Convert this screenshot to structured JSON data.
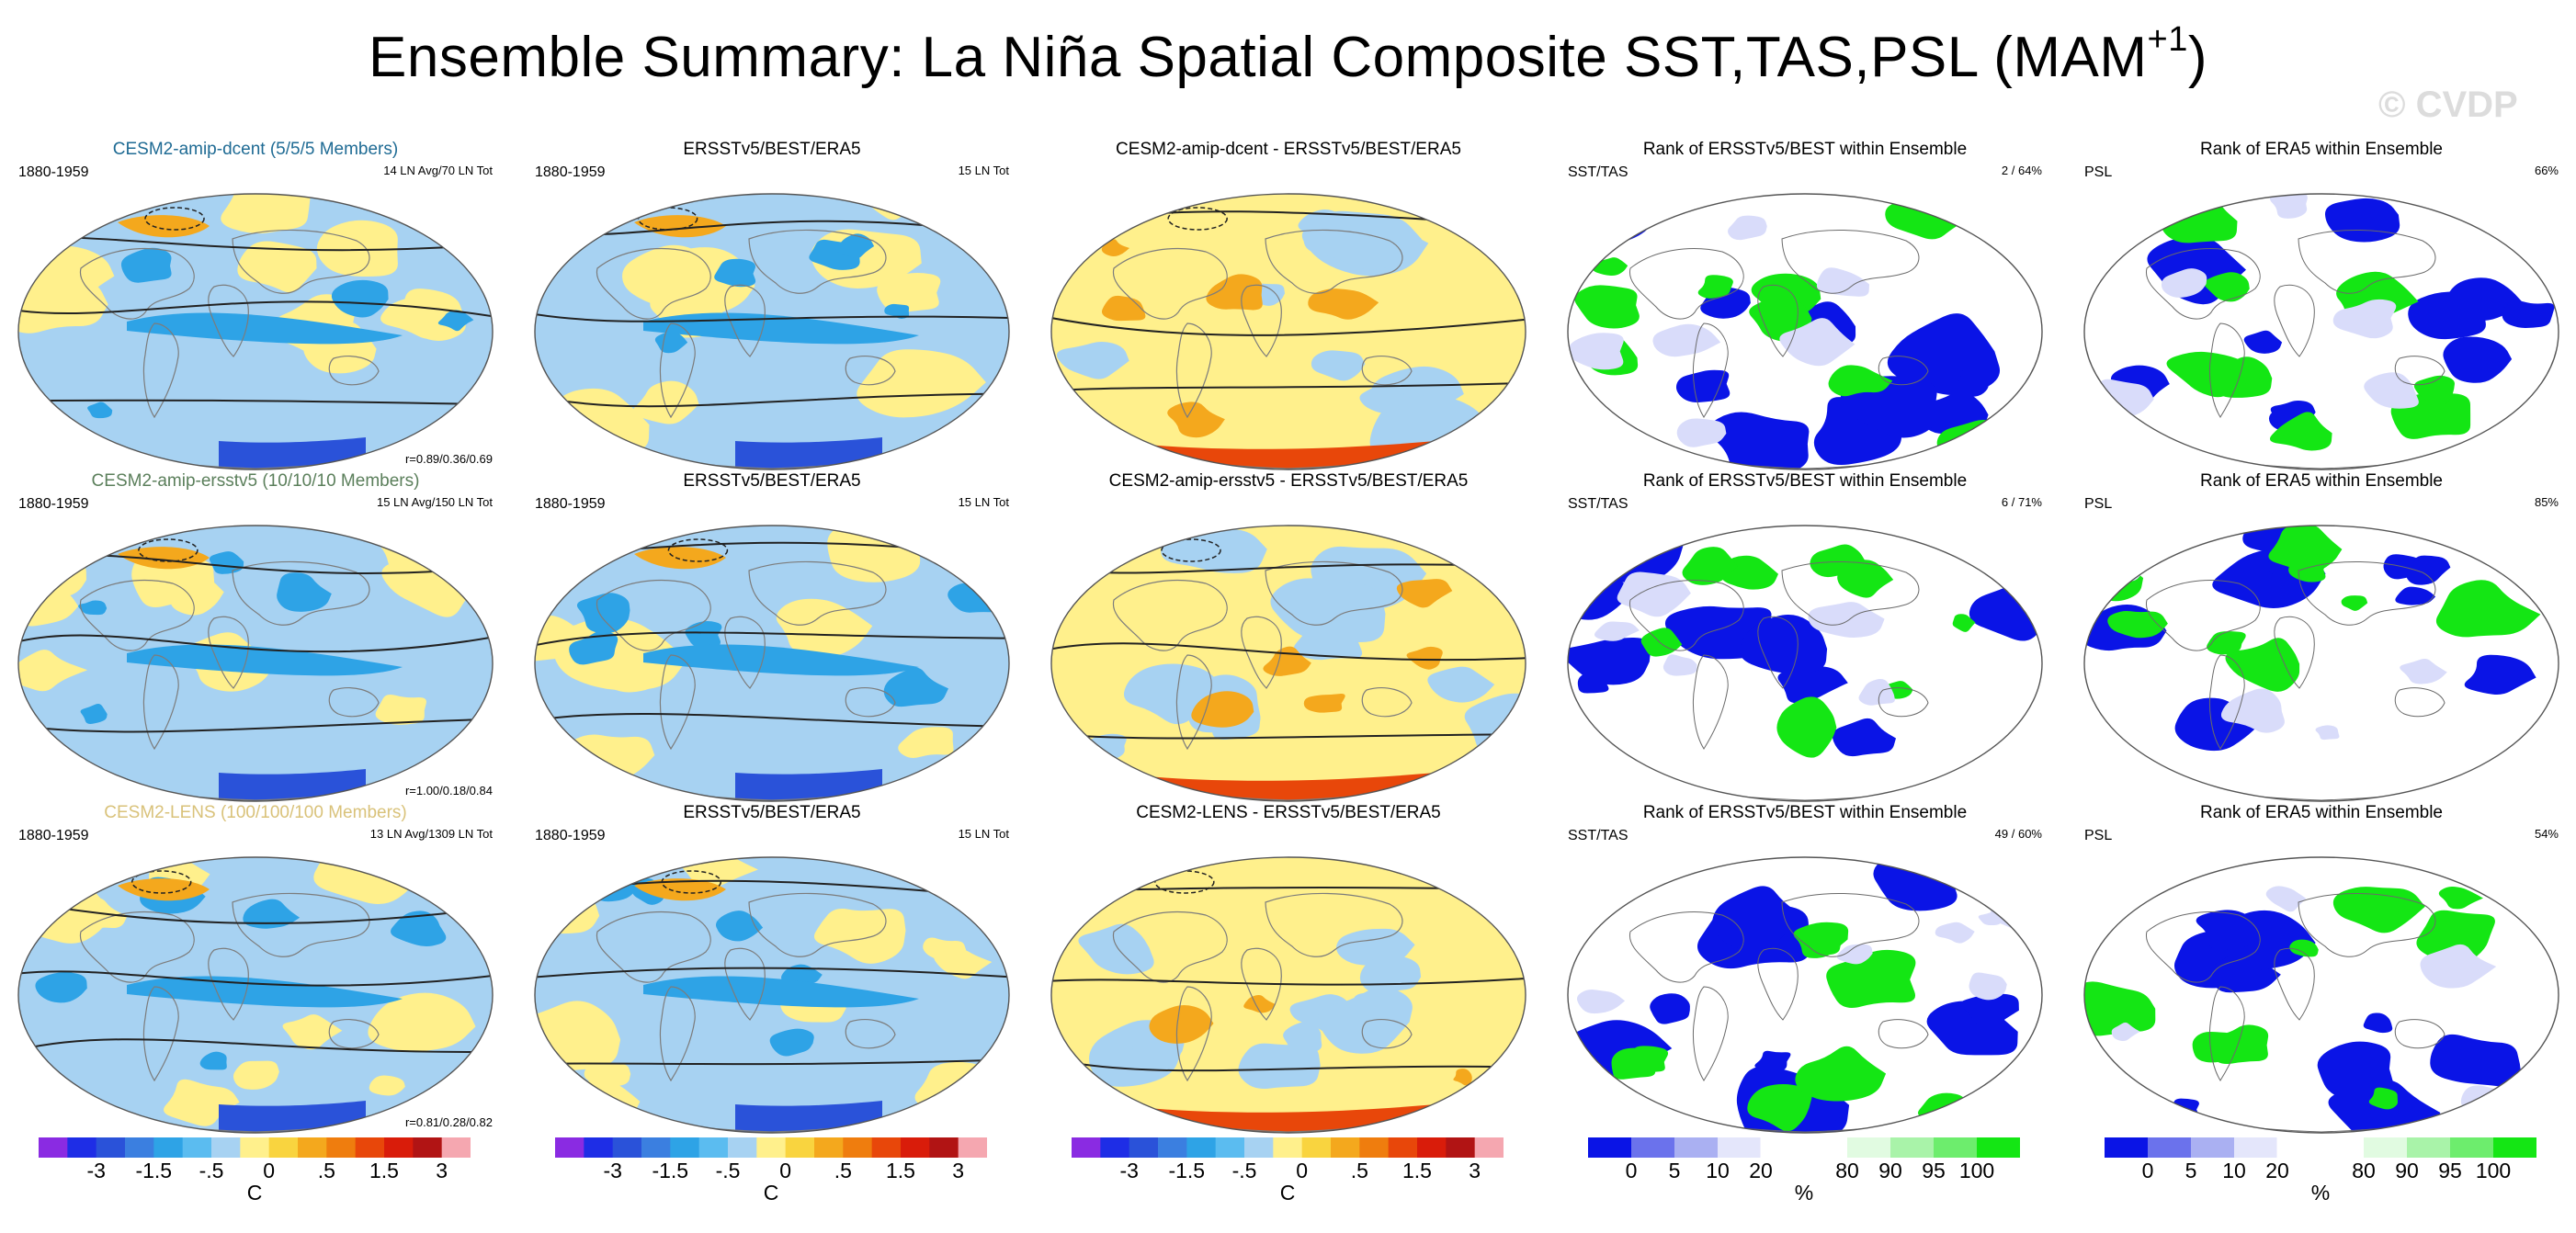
{
  "title": {
    "main": "Ensemble Summary: La Niña Spatial Composite SST,TAS,PSL (MAM",
    "superscript": "+1",
    "close": ")"
  },
  "watermark": "© CVDP",
  "colors": {
    "positive_orange": "#f4a81d",
    "positive_yellow": "#fff08c",
    "negative_lightblue": "#a7d2f2",
    "negative_blue": "#2ea3e6",
    "rank_blue": "#0a14e6",
    "rank_green": "#14e614",
    "model_title_row1": "#1f6b94",
    "model_title_row2": "#5b7f5b",
    "model_title_row3": "#d9c27a"
  },
  "chart_data": [
    {
      "type": "heatmap",
      "row": 1,
      "col": 1,
      "title": "CESM2-amip-dcent (5/5/5 Members)",
      "title_color": "#1f6b94",
      "left_label": "1880-1959",
      "right_label": "14 LN Avg/70 LN Tot",
      "corner_label": "r=0.89/0.36/0.69",
      "kind": "anomaly",
      "strong_polar_south": false
    },
    {
      "type": "heatmap",
      "row": 1,
      "col": 2,
      "title": "ERSSTv5/BEST/ERA5",
      "left_label": "1880-1959",
      "right_label": "15 LN Tot",
      "kind": "anomaly",
      "strong_polar_south": false
    },
    {
      "type": "heatmap",
      "row": 1,
      "col": 3,
      "title": "CESM2-amip-dcent - ERSSTv5/BEST/ERA5",
      "left_label": "",
      "right_label": "",
      "kind": "difference",
      "strong_polar_south": true
    },
    {
      "type": "heatmap",
      "row": 1,
      "col": 4,
      "title": "Rank of ERSSTv5/BEST within Ensemble",
      "left_label": "SST/TAS",
      "right_label": "2 /  64%",
      "kind": "rank"
    },
    {
      "type": "heatmap",
      "row": 1,
      "col": 5,
      "title": "Rank of ERA5 within Ensemble",
      "left_label": "PSL",
      "right_label": "66%",
      "kind": "rank"
    },
    {
      "type": "heatmap",
      "row": 2,
      "col": 1,
      "title": "CESM2-amip-ersstv5 (10/10/10 Members)",
      "title_color": "#5b7f5b",
      "left_label": "1880-1959",
      "right_label": "15 LN Avg/150 LN Tot",
      "corner_label": "r=1.00/0.18/0.84",
      "kind": "anomaly",
      "strong_polar_south": false
    },
    {
      "type": "heatmap",
      "row": 2,
      "col": 2,
      "title": "ERSSTv5/BEST/ERA5",
      "left_label": "1880-1959",
      "right_label": "15 LN Tot",
      "kind": "anomaly",
      "strong_polar_south": false
    },
    {
      "type": "heatmap",
      "row": 2,
      "col": 3,
      "title": "CESM2-amip-ersstv5 - ERSSTv5/BEST/ERA5",
      "left_label": "",
      "right_label": "",
      "kind": "difference",
      "strong_polar_south": true
    },
    {
      "type": "heatmap",
      "row": 2,
      "col": 4,
      "title": "Rank of ERSSTv5/BEST within Ensemble",
      "left_label": "SST/TAS",
      "right_label": "6 /  71%",
      "kind": "rank"
    },
    {
      "type": "heatmap",
      "row": 2,
      "col": 5,
      "title": "Rank of ERA5 within Ensemble",
      "left_label": "PSL",
      "right_label": "85%",
      "kind": "rank"
    },
    {
      "type": "heatmap",
      "row": 3,
      "col": 1,
      "title": "CESM2-LENS (100/100/100 Members)",
      "title_color": "#d9c27a",
      "left_label": "1880-1959",
      "right_label": "13 LN Avg/1309 LN Tot",
      "corner_label": "r=0.81/0.28/0.82",
      "kind": "anomaly",
      "strong_polar_south": false
    },
    {
      "type": "heatmap",
      "row": 3,
      "col": 2,
      "title": "ERSSTv5/BEST/ERA5",
      "left_label": "1880-1959",
      "right_label": "15 LN Tot",
      "kind": "anomaly",
      "strong_polar_south": false
    },
    {
      "type": "heatmap",
      "row": 3,
      "col": 3,
      "title": "CESM2-LENS - ERSSTv5/BEST/ERA5",
      "left_label": "",
      "right_label": "",
      "kind": "difference",
      "strong_polar_south": true
    },
    {
      "type": "heatmap",
      "row": 3,
      "col": 4,
      "title": "Rank of ERSSTv5/BEST within Ensemble",
      "left_label": "SST/TAS",
      "right_label": "49 /  60%",
      "kind": "rank"
    },
    {
      "type": "heatmap",
      "row": 3,
      "col": 5,
      "title": "Rank of ERA5 within Ensemble",
      "left_label": "PSL",
      "right_label": "54%",
      "kind": "rank"
    }
  ],
  "colorbars": [
    {
      "col": 1,
      "type": "anomaly",
      "unit": "C",
      "tick_labels": [
        "-3",
        "-1.5",
        "-.5",
        "0",
        ".5",
        "1.5",
        "3"
      ],
      "colors": [
        "#8a2be2",
        "#1e2de6",
        "#2a52d9",
        "#3b7fe0",
        "#2ea3e6",
        "#5bbcf0",
        "#a7d2f2",
        "#fff08c",
        "#f9d43f",
        "#f4a81d",
        "#ef7d0e",
        "#e8470a",
        "#d91c0a",
        "#b11414",
        "#f5a7b0"
      ]
    },
    {
      "col": 2,
      "type": "anomaly",
      "unit": "C",
      "tick_labels": [
        "-3",
        "-1.5",
        "-.5",
        "0",
        ".5",
        "1.5",
        "3"
      ],
      "colors": [
        "#8a2be2",
        "#1e2de6",
        "#2a52d9",
        "#3b7fe0",
        "#2ea3e6",
        "#5bbcf0",
        "#a7d2f2",
        "#fff08c",
        "#f9d43f",
        "#f4a81d",
        "#ef7d0e",
        "#e8470a",
        "#d91c0a",
        "#b11414",
        "#f5a7b0"
      ]
    },
    {
      "col": 3,
      "type": "anomaly",
      "unit": "C",
      "tick_labels": [
        "-3",
        "-1.5",
        "-.5",
        "0",
        ".5",
        "1.5",
        "3"
      ],
      "colors": [
        "#8a2be2",
        "#1e2de6",
        "#2a52d9",
        "#3b7fe0",
        "#2ea3e6",
        "#5bbcf0",
        "#a7d2f2",
        "#fff08c",
        "#f9d43f",
        "#f4a81d",
        "#ef7d0e",
        "#e8470a",
        "#d91c0a",
        "#b11414",
        "#f5a7b0"
      ]
    },
    {
      "col": 4,
      "type": "rank",
      "unit": "%",
      "tick_labels": [
        "0",
        "5",
        "10",
        "20",
        "80",
        "90",
        "95",
        "100"
      ],
      "colors": [
        "#0a14e6",
        "#6b72ec",
        "#aab0f2",
        "#e4e6fb",
        "#ffffff",
        "#ffffff",
        "#e1fbe1",
        "#a9f3a9",
        "#6ded6d",
        "#14e614"
      ]
    },
    {
      "col": 5,
      "type": "rank",
      "unit": "%",
      "tick_labels": [
        "0",
        "5",
        "10",
        "20",
        "80",
        "90",
        "95",
        "100"
      ],
      "colors": [
        "#0a14e6",
        "#6b72ec",
        "#aab0f2",
        "#e4e6fb",
        "#ffffff",
        "#ffffff",
        "#e1fbe1",
        "#a9f3a9",
        "#6ded6d",
        "#14e614"
      ]
    }
  ]
}
